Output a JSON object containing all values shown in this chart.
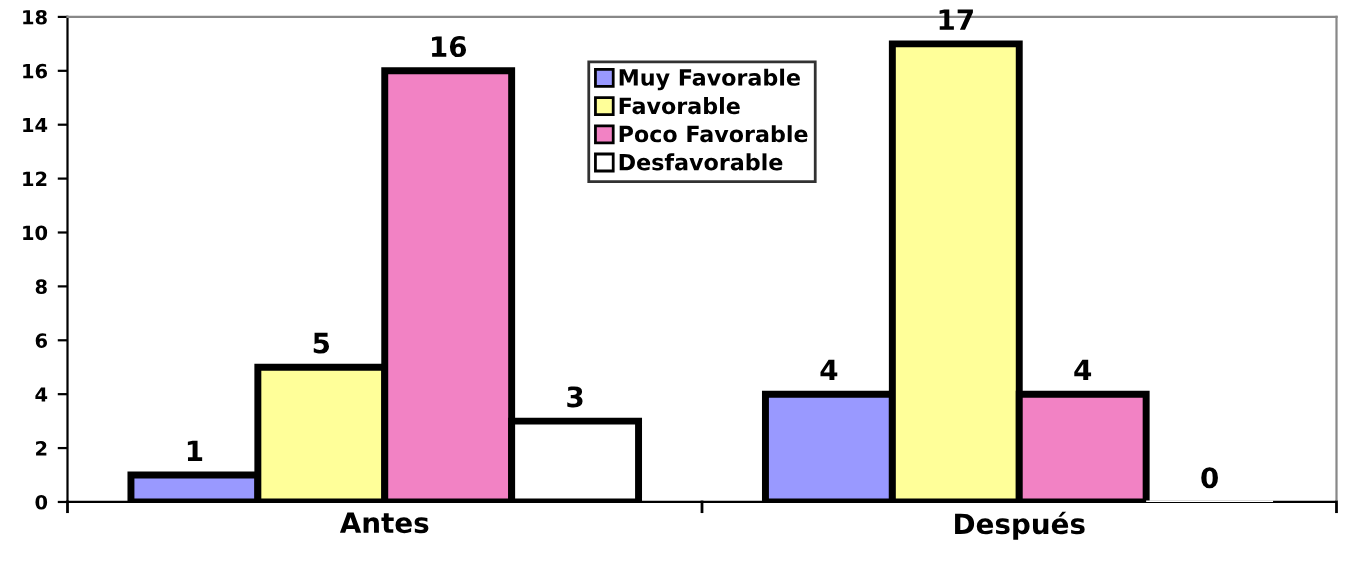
{
  "chart_data": {
    "type": "bar",
    "categories": [
      "Antes",
      "Después"
    ],
    "series": [
      {
        "name": "Muy Favorable",
        "color": "#9999ff",
        "values": [
          1,
          4
        ]
      },
      {
        "name": "Favorable",
        "color": "#ffff99",
        "values": [
          5,
          17
        ]
      },
      {
        "name": "Poco Favorable",
        "color": "#f282c4",
        "values": [
          16,
          4
        ]
      },
      {
        "name": "Desfavorable",
        "color": "#ffffff",
        "values": [
          3,
          0
        ]
      }
    ],
    "ylim": [
      0,
      18
    ],
    "yticks": [
      0,
      2,
      4,
      6,
      8,
      10,
      12,
      14,
      16,
      18
    ],
    "grid": false,
    "legend": "top",
    "data_labels": true
  }
}
